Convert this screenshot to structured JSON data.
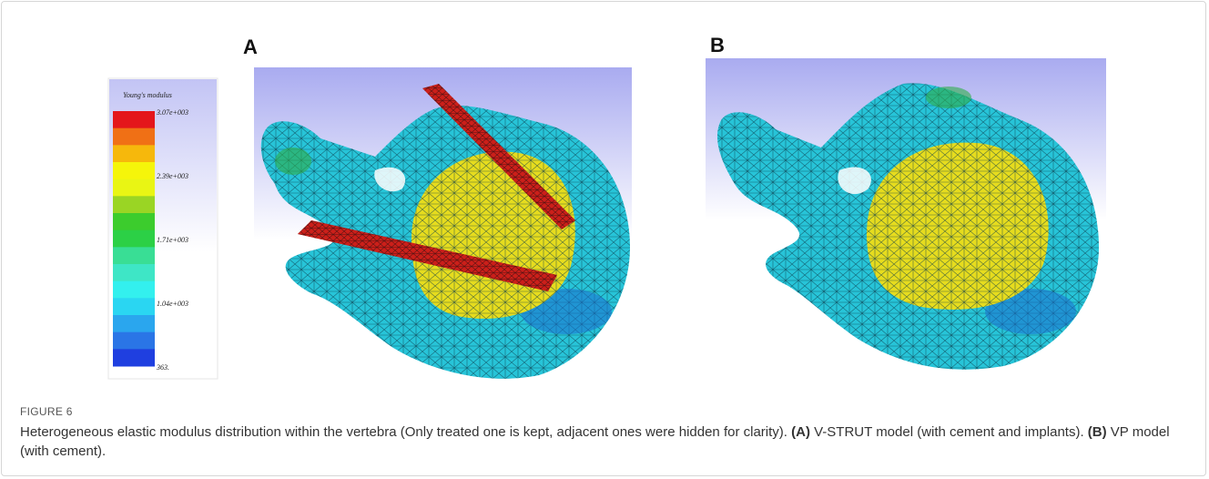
{
  "figure": {
    "panels": [
      "A",
      "B"
    ],
    "colorbar": {
      "title": "Young's modulus",
      "labels": [
        "3.07e+003",
        "2.39e+003",
        "1.71e+003",
        "1.04e+003",
        "363."
      ]
    },
    "caption": {
      "label": "FIGURE 6",
      "text_1": "Heterogeneous elastic modulus distribution within the vertebra (Only treated one is kept, adjacent ones were hidden for clarity).",
      "ref_a": "(A)",
      "text_2": "V-STRUT model (with cement and implants).",
      "ref_b": "(B)",
      "text_3": "VP model (with cement)."
    }
  }
}
